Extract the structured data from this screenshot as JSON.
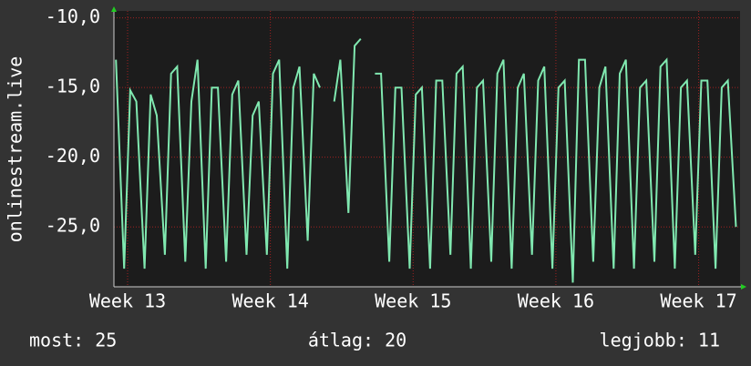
{
  "chart_data": {
    "type": "line",
    "y_label": "onlinestream.live",
    "footer": [
      "most: 25",
      "átlag: 20",
      "legjobb: 11"
    ],
    "xlim": [
      0,
      30.7
    ],
    "xticks": [
      {
        "value": 0.67,
        "label": "Week 13"
      },
      {
        "value": 7.67,
        "label": "Week 14"
      },
      {
        "value": 14.67,
        "label": "Week 15"
      },
      {
        "value": 21.67,
        "label": "Week 16"
      },
      {
        "value": 28.67,
        "label": "Week 17"
      }
    ],
    "ylim": [
      -29.3,
      -9.5
    ],
    "yticks": [
      {
        "value": -10,
        "label": "-10,0"
      },
      {
        "value": -15,
        "label": "-15,0"
      },
      {
        "value": -20,
        "label": "-20,0"
      },
      {
        "value": -25,
        "label": "-25,0"
      }
    ],
    "grid": true,
    "x": [
      0.1,
      0.5,
      0.8,
      1.1,
      1.5,
      1.8,
      2.1,
      2.5,
      2.8,
      3.1,
      3.5,
      3.8,
      4.1,
      4.5,
      4.8,
      5.1,
      5.5,
      5.8,
      6.1,
      6.5,
      6.8,
      7.1,
      7.5,
      7.8,
      8.1,
      8.5,
      8.8,
      9.1,
      9.5,
      9.8,
      10.1,
      10.5,
      10.8,
      11.1,
      11.5,
      11.8,
      12.1,
      12.5,
      12.8,
      13.1,
      13.5,
      13.8,
      14.1,
      14.5,
      14.8,
      15.1,
      15.5,
      15.8,
      16.1,
      16.5,
      16.8,
      17.1,
      17.5,
      17.8,
      18.1,
      18.5,
      18.8,
      19.1,
      19.5,
      19.8,
      20.1,
      20.5,
      20.8,
      21.1,
      21.5,
      21.8,
      22.1,
      22.5,
      22.8,
      23.1,
      23.5,
      23.8,
      24.1,
      24.5,
      24.8,
      25.1,
      25.5,
      25.8,
      26.1,
      26.5,
      26.8,
      27.1,
      27.5,
      27.8,
      28.1,
      28.5,
      28.8,
      29.1,
      29.5,
      29.8,
      30.1,
      30.5
    ],
    "series": [
      {
        "color": "#80e8b0",
        "values": [
          -13,
          -28,
          -15.2,
          -16,
          -28,
          -15.5,
          -17,
          -27,
          -14,
          -13.5,
          -27.5,
          -16,
          -13,
          -28,
          -15,
          -15,
          -27.5,
          -15.5,
          -14.5,
          -27,
          -17,
          -16,
          -27,
          -14,
          -13,
          -28,
          -15,
          -13.5,
          -26,
          -14,
          -15,
          null,
          -16,
          -13,
          -24,
          -12,
          -11.5,
          null,
          -14,
          -14,
          -27.5,
          -15,
          -15,
          -28,
          -15.5,
          -15,
          -28,
          -14.5,
          -14.5,
          -27,
          -14,
          -13.5,
          -28,
          -15,
          -14.5,
          -27.5,
          -14,
          -13,
          -28,
          -15,
          -14,
          -27,
          -14.5,
          -13.5,
          -28,
          -15,
          -14.5,
          -29,
          -13,
          -13,
          -27.5,
          -15,
          -13.5,
          -28,
          -14,
          -13,
          -28,
          -15,
          -14.5,
          -27.5,
          -13.5,
          -13,
          -28,
          -15,
          -14.5,
          -27,
          -14.5,
          -14.5,
          -28,
          -15,
          -14.5,
          -25
        ]
      }
    ]
  }
}
